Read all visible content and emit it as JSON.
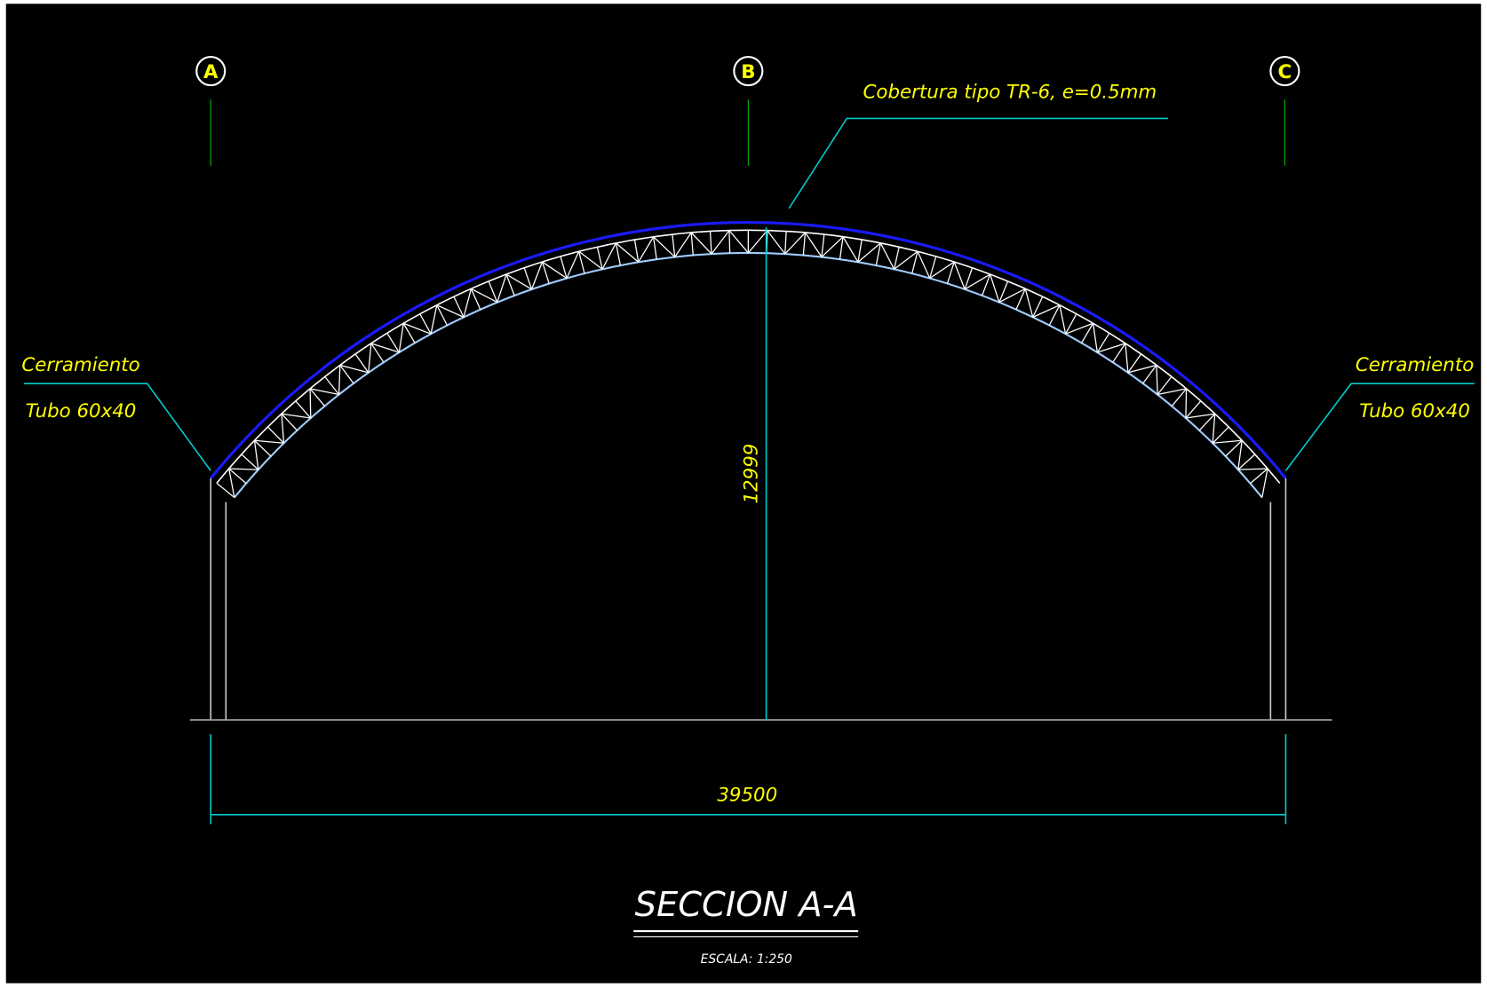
{
  "grid_labels": [
    "A",
    "B",
    "C"
  ],
  "roof_note": "Cobertura tipo TR-6, e=0.5mm",
  "left_note": {
    "line1": "Cerramiento",
    "line2": "Tubo 60x40"
  },
  "right_note": {
    "line1": "Cerramiento",
    "line2": "Tubo 60x40"
  },
  "height_dimension": "12999",
  "span_dimension": "39500",
  "title": "SECCION A-A",
  "scale": "ESCALA: 1:250"
}
